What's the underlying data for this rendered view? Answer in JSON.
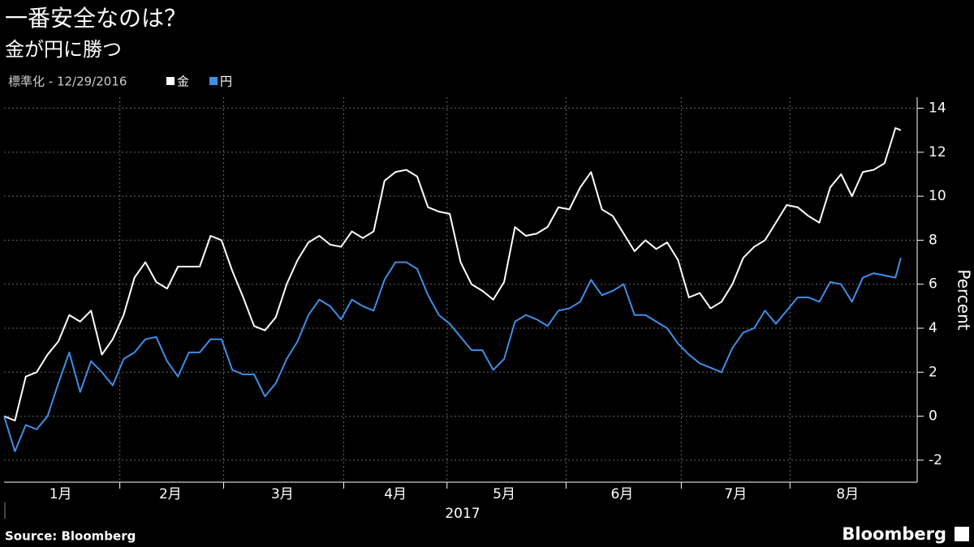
{
  "chart_data": {
    "type": "line",
    "title": "一番安全なのは？",
    "subtitle": "金が円に勝つ",
    "legend_prefix": "標準化 - 12/29/2016",
    "ylabel": "Percent",
    "xlabel": "2017",
    "source": "Source: Bloomberg",
    "brand": "Bloomberg",
    "x": [
      0,
      2,
      4,
      6,
      8,
      10,
      12,
      14,
      16,
      18,
      20,
      22,
      24,
      26,
      28,
      30,
      32,
      34,
      36,
      38,
      40,
      42,
      44,
      46,
      48,
      50,
      52,
      54,
      56,
      58,
      60,
      62,
      64,
      66,
      68,
      70,
      72,
      74,
      76,
      78,
      80,
      82,
      84,
      86,
      88,
      90,
      92,
      94,
      96,
      98,
      100,
      102,
      104,
      106,
      108,
      110,
      112,
      114,
      116,
      118,
      120,
      122,
      124,
      126,
      128,
      130,
      132,
      134,
      136,
      138,
      140,
      142,
      144,
      146,
      148,
      150,
      152,
      154,
      156,
      158,
      160,
      162,
      164,
      165
    ],
    "xlim": [
      0,
      168
    ],
    "xticks": [
      {
        "value": 10.4,
        "label": "1月"
      },
      {
        "value": 30.6,
        "label": "2月"
      },
      {
        "value": 51.2,
        "label": "3月"
      },
      {
        "value": 72,
        "label": "4月"
      },
      {
        "value": 92,
        "label": "5月"
      },
      {
        "value": 113.7,
        "label": "6月"
      },
      {
        "value": 134.6,
        "label": "7月"
      },
      {
        "value": 155.2,
        "label": "8月"
      }
    ],
    "xgrid": [
      21.3,
      40.4,
      62.5,
      81.5,
      103.4,
      124.6,
      144.6
    ],
    "ylim": [
      -3,
      14.5
    ],
    "yticks": [
      -2,
      0,
      2,
      4,
      6,
      8,
      10,
      12,
      14
    ],
    "grid": true,
    "series": [
      {
        "name": "金",
        "color": "#ffffff",
        "values": [
          0.0,
          -0.2,
          1.8,
          2.0,
          2.8,
          3.4,
          4.6,
          4.3,
          4.8,
          2.8,
          3.5,
          4.6,
          6.3,
          7.0,
          6.1,
          5.8,
          6.8,
          6.8,
          6.8,
          8.2,
          8.0,
          6.6,
          5.4,
          4.1,
          3.9,
          4.5,
          6.0,
          7.1,
          7.9,
          8.2,
          7.8,
          7.7,
          8.4,
          8.1,
          8.4,
          10.7,
          11.1,
          11.2,
          10.9,
          9.5,
          9.3,
          9.2,
          7.0,
          6.0,
          5.7,
          5.3,
          6.1,
          8.6,
          8.2,
          8.3,
          8.6,
          9.5,
          9.4,
          10.4,
          11.1,
          9.4,
          9.1,
          8.3,
          7.5,
          8.0,
          7.6,
          7.9,
          7.1,
          5.4,
          5.6,
          4.9,
          5.2,
          6.0,
          7.2,
          7.7,
          8.0,
          8.8,
          9.6,
          9.5,
          9.1,
          8.8,
          10.4,
          11.0,
          10.0,
          11.1,
          11.2,
          11.5,
          13.1,
          13.0
        ]
      },
      {
        "name": "円",
        "color": "#3d8fe6",
        "values": [
          0.0,
          -1.6,
          -0.4,
          -0.6,
          0.0,
          1.5,
          2.9,
          1.1,
          2.5,
          2.0,
          1.4,
          2.6,
          2.9,
          3.5,
          3.6,
          2.5,
          1.8,
          2.9,
          2.9,
          3.5,
          3.5,
          2.1,
          1.9,
          1.9,
          0.9,
          1.5,
          2.6,
          3.4,
          4.6,
          5.3,
          5.0,
          4.4,
          5.3,
          5.0,
          4.8,
          6.2,
          7.0,
          7.0,
          6.7,
          5.5,
          4.6,
          4.2,
          3.6,
          3.0,
          3.0,
          2.1,
          2.6,
          4.3,
          4.6,
          4.4,
          4.1,
          4.8,
          4.9,
          5.2,
          6.2,
          5.5,
          5.7,
          6.0,
          4.6,
          4.6,
          4.3,
          4.0,
          3.3,
          2.8,
          2.4,
          2.2,
          2.0,
          3.1,
          3.8,
          4.0,
          4.8,
          4.2,
          4.8,
          5.4,
          5.4,
          5.2,
          6.1,
          6.0,
          5.2,
          6.3,
          6.5,
          6.4,
          6.3,
          7.2
        ]
      }
    ]
  }
}
